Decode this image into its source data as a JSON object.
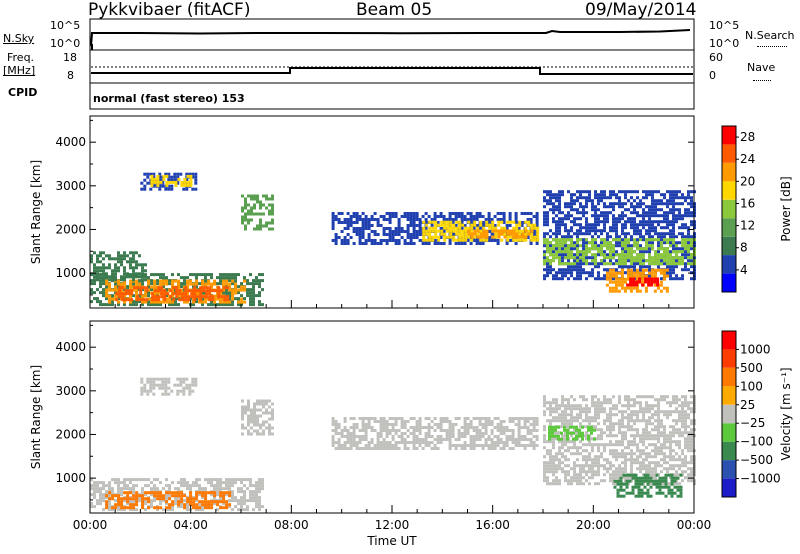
{
  "header": {
    "title": "Pykkvibaer (fitACF)",
    "beam": "Beam 05",
    "date": "09/May/2014"
  },
  "status_panels": {
    "nsky_label": "N.Sky",
    "nsearch_label": "N.Search",
    "nsky_ticks": [
      "10^5",
      "10^0"
    ],
    "freq_label": "Freq.",
    "freq_unit": "[MHz]",
    "freq_ticks": [
      "18",
      "8"
    ],
    "nave_label": "Nave",
    "nave_ticks": [
      "60",
      "0"
    ],
    "cpid_label": "CPID",
    "cpid_value": "normal (fast stereo) 153"
  },
  "colors": {
    "power_scale": [
      "#0000ff",
      "#2040b0",
      "#3c7a50",
      "#5aa050",
      "#8cc83c",
      "#ffd700",
      "#ff9a00",
      "#ff5a00",
      "#ff0000"
    ],
    "velocity_scale": [
      "#1c1cc8",
      "#2a50b0",
      "#3a8a50",
      "#5cc83c",
      "#c0c0bc",
      "#ffaa00",
      "#ff7800",
      "#ff3c00",
      "#ff0000"
    ]
  },
  "chart_data": [
    {
      "type": "heatmap",
      "quantity": "power",
      "ylabel": "Slant Range [km]",
      "yticks": [
        1000,
        2000,
        3000,
        4000
      ],
      "ylim": [
        200,
        4600
      ],
      "xlim": [
        0,
        24
      ],
      "colorbar_label": "Power [dB]",
      "colorbar_ticks": [
        4,
        8,
        12,
        16,
        20,
        24,
        28
      ],
      "colorbar_range": [
        0,
        30
      ],
      "echo_regions": [
        {
          "t0": 0.0,
          "t1": 6.9,
          "r0": 300,
          "r1": 1000,
          "level": 2
        },
        {
          "t0": 0.6,
          "t1": 6.2,
          "r0": 350,
          "r1": 850,
          "level": 6
        },
        {
          "t0": 1.0,
          "t1": 5.5,
          "r0": 420,
          "r1": 700,
          "level": 7
        },
        {
          "t0": 0.0,
          "t1": 2.2,
          "r0": 850,
          "r1": 1500,
          "level": 2
        },
        {
          "t0": 2.0,
          "t1": 4.2,
          "r0": 2950,
          "r1": 3300,
          "level": 1
        },
        {
          "t0": 2.4,
          "t1": 4.0,
          "r0": 3000,
          "r1": 3250,
          "level": 5
        },
        {
          "t0": 6.0,
          "t1": 7.3,
          "r0": 2000,
          "r1": 2800,
          "level": 3
        },
        {
          "t0": 9.6,
          "t1": 17.8,
          "r0": 1700,
          "r1": 2400,
          "level": 1
        },
        {
          "t0": 13.2,
          "t1": 17.8,
          "r0": 1750,
          "r1": 2200,
          "level": 5
        },
        {
          "t0": 15.0,
          "t1": 17.6,
          "r0": 1800,
          "r1": 2000,
          "level": 6
        },
        {
          "t0": 18.0,
          "t1": 24.0,
          "r0": 900,
          "r1": 2900,
          "level": 1
        },
        {
          "t0": 18.0,
          "t1": 24.0,
          "r0": 1200,
          "r1": 1800,
          "level": 4
        },
        {
          "t0": 20.5,
          "t1": 23.0,
          "r0": 600,
          "r1": 1100,
          "level": 6
        },
        {
          "t0": 21.3,
          "t1": 22.6,
          "r0": 700,
          "r1": 900,
          "level": 8
        }
      ]
    },
    {
      "type": "heatmap",
      "quantity": "velocity",
      "ylabel": "Slant Range [km]",
      "xlabel": "Time UT",
      "xticks": [
        "00:00",
        "04:00",
        "08:00",
        "12:00",
        "16:00",
        "20:00",
        "00:00"
      ],
      "yticks": [
        1000,
        2000,
        3000,
        4000
      ],
      "ylim": [
        200,
        4600
      ],
      "xlim": [
        0,
        24
      ],
      "colorbar_label": "Velocity [m s⁻¹]",
      "colorbar_ticks": [
        "1000",
        "500",
        "100",
        "25",
        "−25",
        "−100",
        "−500",
        "−1000"
      ],
      "echo_regions": [
        {
          "t0": 0.0,
          "t1": 6.9,
          "r0": 300,
          "r1": 1000,
          "level": 4
        },
        {
          "t0": 0.6,
          "t1": 5.5,
          "r0": 350,
          "r1": 700,
          "level": 6
        },
        {
          "t0": 2.0,
          "t1": 4.2,
          "r0": 2950,
          "r1": 3300,
          "level": 4
        },
        {
          "t0": 6.0,
          "t1": 7.3,
          "r0": 2000,
          "r1": 2800,
          "level": 4
        },
        {
          "t0": 9.6,
          "t1": 17.8,
          "r0": 1700,
          "r1": 2400,
          "level": 4
        },
        {
          "t0": 18.0,
          "t1": 24.0,
          "r0": 900,
          "r1": 2900,
          "level": 4
        },
        {
          "t0": 20.8,
          "t1": 23.5,
          "r0": 600,
          "r1": 1100,
          "level": 2
        },
        {
          "t0": 18.2,
          "t1": 20.0,
          "r0": 1900,
          "r1": 2200,
          "level": 3
        }
      ]
    }
  ]
}
